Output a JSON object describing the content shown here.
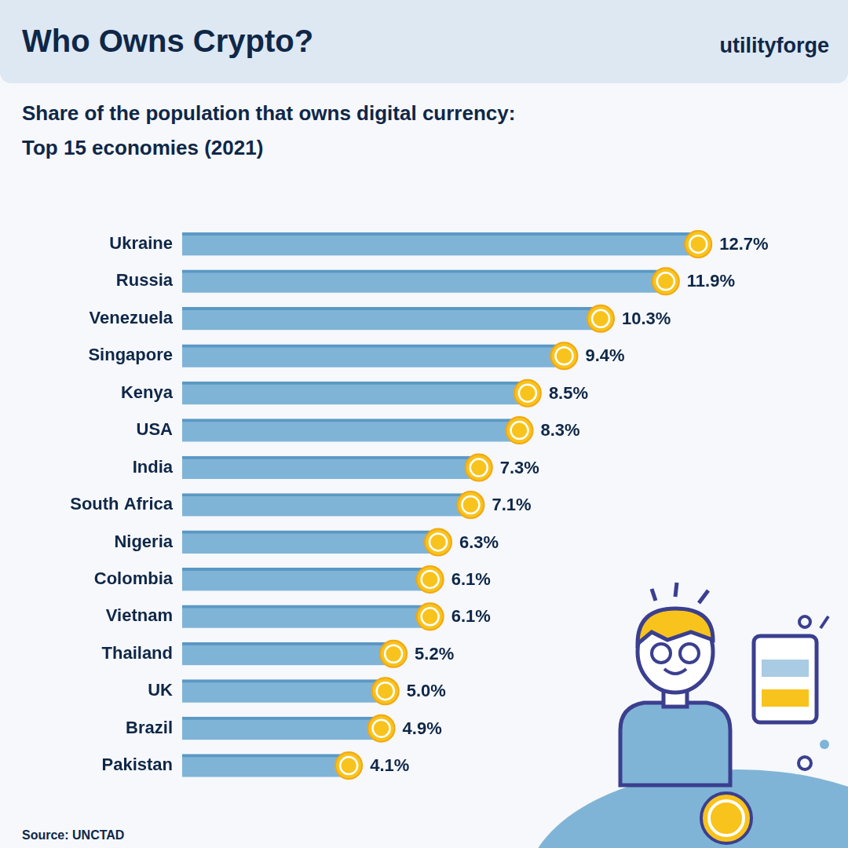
{
  "chart_data": {
    "type": "bar",
    "title": "Who Owns Crypto?",
    "brand": "utilityforge",
    "subtitle": "Share of the population that owns digital currency: Top 15 economies (2021)",
    "source": "Source: UNCTAD",
    "orientation": "horizontal",
    "categories": [
      "Ukraine",
      "Russia",
      "Venezuela",
      "Singapore",
      "Kenya",
      "USA",
      "India",
      "South Africa",
      "Nigeria",
      "Colombia",
      "Vietnam",
      "Thailand",
      "UK",
      "Brazil",
      "Pakistan"
    ],
    "values": [
      12.7,
      11.9,
      10.3,
      9.4,
      8.5,
      8.3,
      7.3,
      7.1,
      6.3,
      6.1,
      6.1,
      5.2,
      5.0,
      4.9,
      4.1
    ],
    "value_labels": [
      "12.7%",
      "11.9%",
      "10.3%",
      "9.4%",
      "8.5%",
      "8.3%",
      "7.3%",
      "7.1%",
      "6.3%",
      "6.1%",
      "6.1%",
      "5.2%",
      "5.0%",
      "4.9%",
      "4.1%"
    ],
    "color": "#7fb4d7",
    "xlim": [
      0,
      16
    ],
    "grid": false,
    "data_labels": true,
    "tick_labels": "y"
  }
}
